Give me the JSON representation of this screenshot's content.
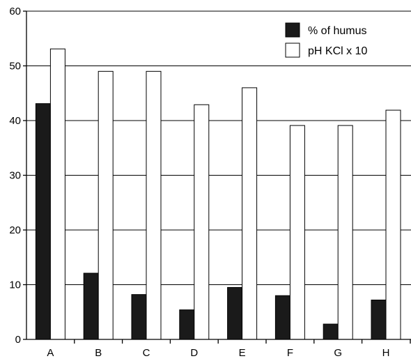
{
  "chart_data": {
    "type": "bar",
    "categories": [
      "A",
      "B",
      "C",
      "D",
      "E",
      "F",
      "G",
      "H"
    ],
    "series": [
      {
        "name": "% of humus",
        "color": "#1a1a1a",
        "values": [
          43.1,
          12.1,
          8.2,
          5.4,
          9.5,
          8.0,
          2.8,
          7.2
        ]
      },
      {
        "name": "pH KCl x 10",
        "color": "#ffffff",
        "values": [
          53.1,
          49.0,
          49.0,
          42.9,
          46.0,
          39.1,
          39.1,
          41.9
        ]
      }
    ],
    "ylim": [
      0,
      60
    ],
    "yticks": [
      0,
      10,
      20,
      30,
      40,
      50,
      60
    ],
    "grid": true,
    "legend_position": "top-right",
    "title": "",
    "xlabel": "",
    "ylabel": ""
  }
}
